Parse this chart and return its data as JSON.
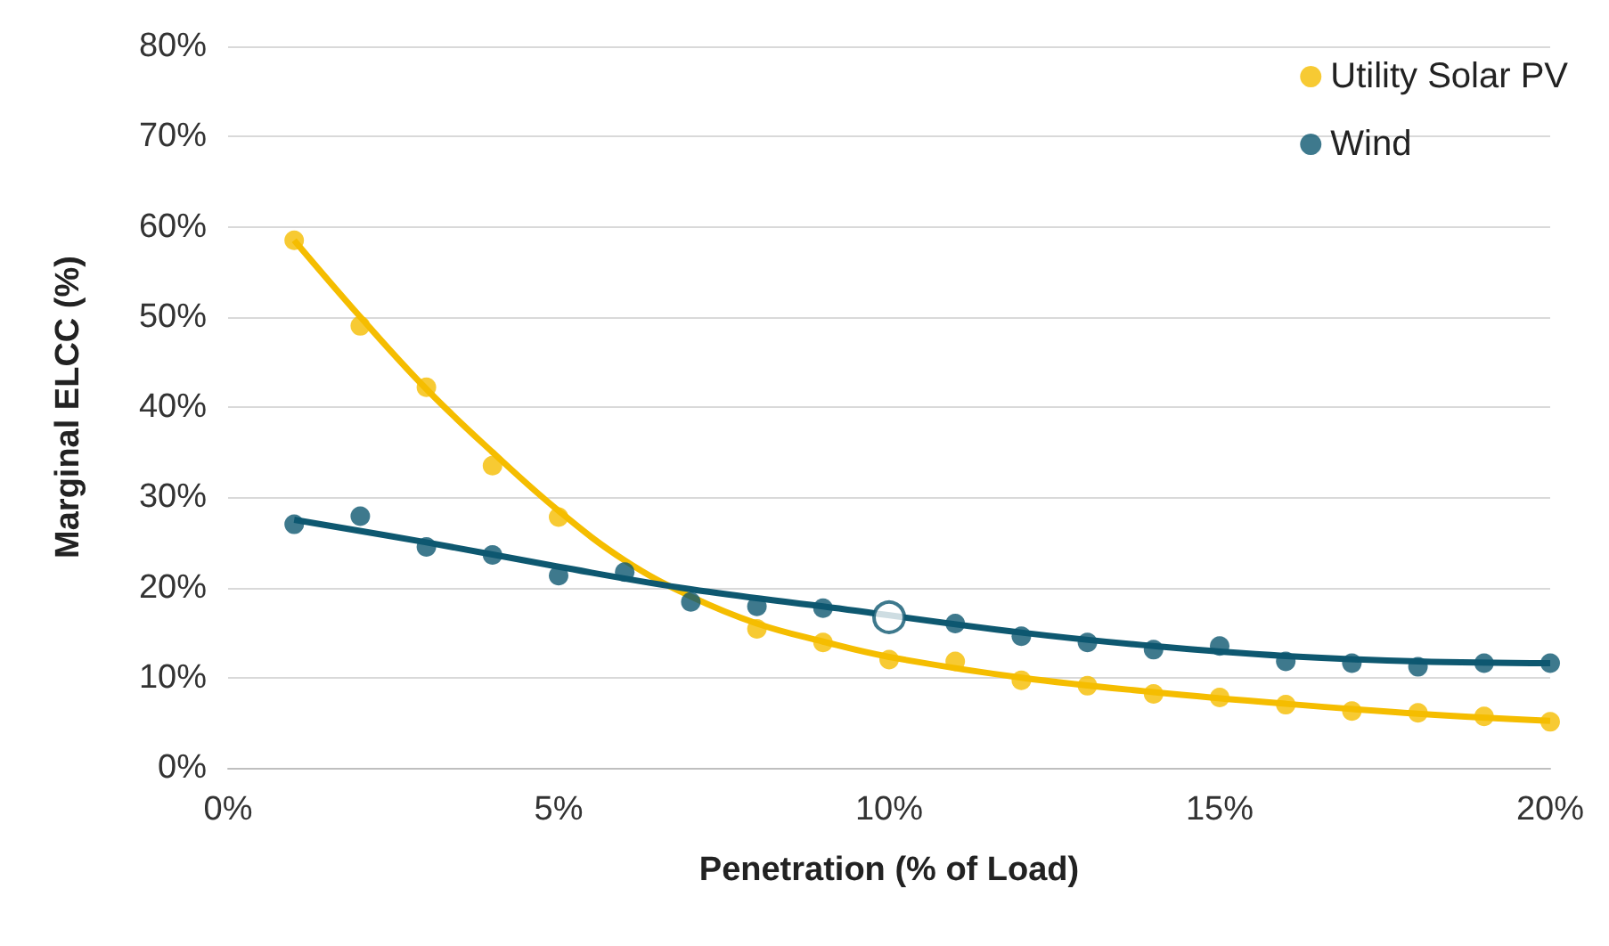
{
  "chart_data": {
    "type": "scatter",
    "xlabel": "Penetration (% of Load)",
    "ylabel": "Marginal ELCC (%)",
    "xlim": [
      0,
      20
    ],
    "xticks": [
      {
        "value": 0,
        "label": "0%"
      },
      {
        "value": 5,
        "label": "5%"
      },
      {
        "value": 10,
        "label": "10%"
      },
      {
        "value": 15,
        "label": "15%"
      },
      {
        "value": 20,
        "label": "20%"
      }
    ],
    "ylim": [
      0,
      80
    ],
    "yticks": [
      {
        "value": 0,
        "label": "0%"
      },
      {
        "value": 10,
        "label": "10%"
      },
      {
        "value": 20,
        "label": "20%"
      },
      {
        "value": 30,
        "label": "30%"
      },
      {
        "value": 40,
        "label": "40%"
      },
      {
        "value": 50,
        "label": "50%"
      },
      {
        "value": 60,
        "label": "60%"
      },
      {
        "value": 70,
        "label": "70%"
      },
      {
        "value": 80,
        "label": "80%"
      }
    ],
    "grid": "y",
    "legend": "top right",
    "marker": "circle",
    "series": [
      {
        "type": "line",
        "marker": "none",
        "color": "#f5bd00",
        "x": [
          1,
          2,
          3,
          4,
          5,
          6,
          7,
          8,
          9,
          10,
          12,
          14,
          16,
          18,
          20
        ],
        "values": [
          58.5,
          50,
          42,
          35,
          28.5,
          23,
          19,
          16,
          14,
          12.3,
          10,
          8.4,
          7.1,
          6,
          5.2
        ]
      },
      {
        "type": "line",
        "marker": "none",
        "color": "#0e5870",
        "x": [
          1,
          3,
          5,
          7,
          9,
          12,
          14,
          16,
          18,
          20
        ],
        "values": [
          27.5,
          25,
          22.3,
          19.8,
          17.9,
          15,
          13.5,
          12.4,
          11.8,
          11.6
        ]
      },
      {
        "name": "Utility Solar PV",
        "color": "#f5bd00",
        "x": [
          1,
          2,
          3,
          4,
          5,
          6,
          7,
          8,
          9,
          10,
          11,
          12,
          13,
          14,
          15,
          16,
          17,
          18,
          19,
          20
        ],
        "values": [
          58.5,
          49,
          42.2,
          33.5,
          27.8,
          null,
          null,
          15.4,
          13.9,
          12,
          11.8,
          9.7,
          9.1,
          8.2,
          7.8,
          7,
          6.3,
          6.1,
          5.7,
          5.1
        ]
      },
      {
        "name": "Wind",
        "color": "#0e5870",
        "x": [
          1,
          2,
          3,
          4,
          5,
          6,
          7,
          8,
          9,
          11,
          12,
          13,
          14,
          15,
          16,
          17,
          18,
          19,
          20
        ],
        "values": [
          27,
          27.9,
          24.5,
          23.6,
          21.3,
          21.7,
          18.4,
          17.9,
          17.7,
          16,
          14.6,
          13.9,
          13.1,
          13.5,
          11.8,
          11.6,
          11.2,
          11.6,
          11.6
        ]
      },
      {
        "color": "#0e5870",
        "x": [
          10
        ],
        "values": [
          16.7
        ]
      }
    ]
  }
}
